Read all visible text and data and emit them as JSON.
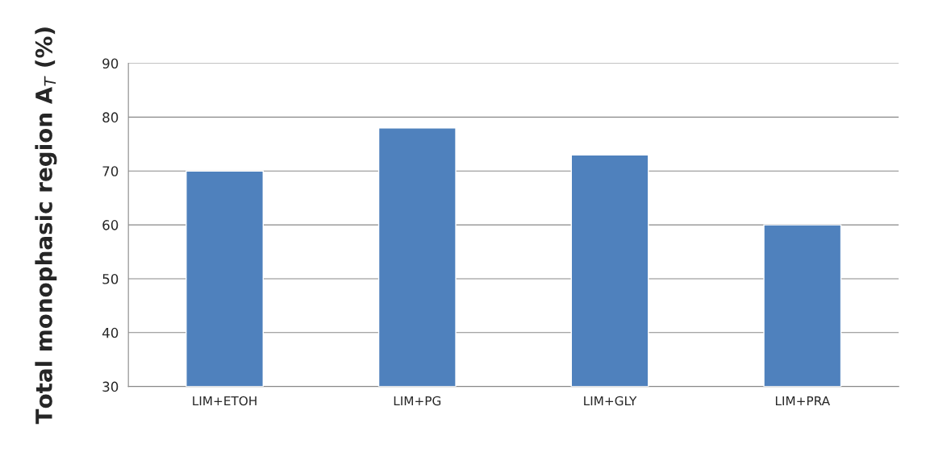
{
  "chart_data": {
    "type": "bar",
    "ylabel": "Total monophasic region A$_{T}$ (%)",
    "categories": [
      "LIM+ETOH",
      "LIM+PG",
      "LIM+GLY",
      "LIM+PRA"
    ],
    "values": [
      70,
      78,
      73,
      60
    ],
    "color": "#4f81bd",
    "ylim": [
      30,
      90
    ],
    "yticks": [
      30,
      40,
      50,
      60,
      70,
      80,
      90
    ],
    "grid": "y",
    "legend": false
  }
}
